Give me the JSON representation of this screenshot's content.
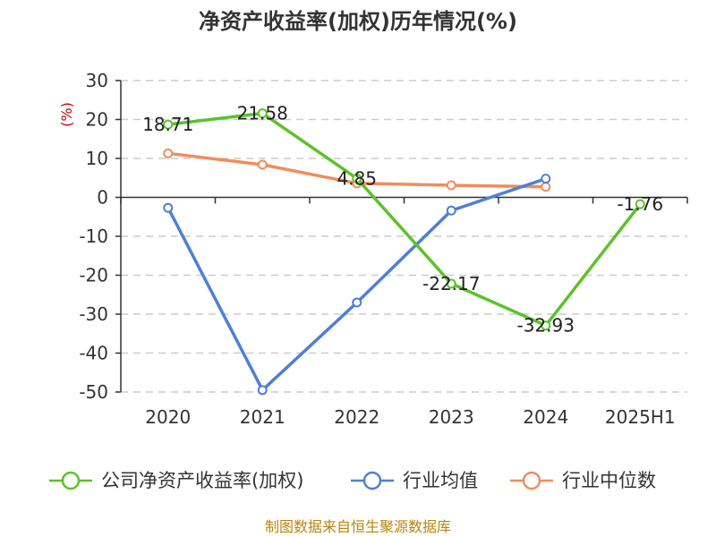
{
  "chart_data": {
    "type": "line",
    "title": "净资产收益率(加权)历年情况(%)",
    "ylabel": "(%)",
    "xlabel": "",
    "categories": [
      "2020",
      "2021",
      "2022",
      "2023",
      "2024",
      "2025H1"
    ],
    "ylim": [
      -50,
      30
    ],
    "yticks": [
      30,
      20,
      10,
      0,
      -10,
      -20,
      -30,
      -40,
      -50
    ],
    "grid": true,
    "legend_position": "bottom",
    "series": [
      {
        "name": "公司净资产收益率(加权)",
        "color": "#5cc22a",
        "values": [
          18.71,
          21.58,
          4.85,
          -22.17,
          -32.93,
          -1.76
        ],
        "labels": [
          "18.71",
          "21.58",
          "4.85",
          "-22.17",
          "-32.93",
          "-1.76"
        ]
      },
      {
        "name": "行业均值",
        "color": "#4e7fd9",
        "values": [
          -2.7,
          -49.5,
          -27.0,
          -3.4,
          4.8,
          null
        ]
      },
      {
        "name": "行业中位数",
        "color": "#f28c5a",
        "values": [
          11.3,
          8.4,
          3.6,
          3.1,
          2.7,
          null
        ]
      }
    ]
  },
  "source": "制图数据来自恒生聚源数据库"
}
